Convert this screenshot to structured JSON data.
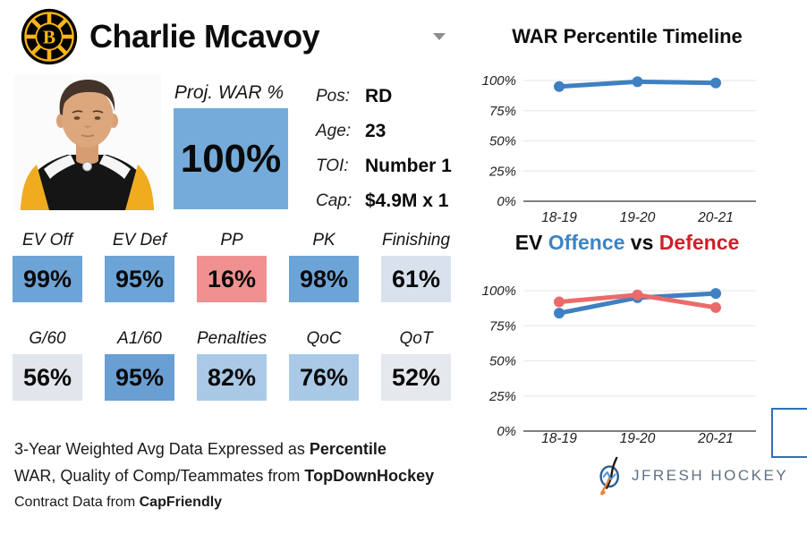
{
  "header": {
    "team_logo": "boston-bruins-logo",
    "player_name": "Charlie Mcavoy",
    "dropdown_icon": "caret-down"
  },
  "summary": {
    "proj_war_label": "Proj. WAR %",
    "proj_war_value": "100%",
    "proj_war_color": "#74abda",
    "info": [
      {
        "label": "Pos:",
        "value": "RD"
      },
      {
        "label": "Age:",
        "value": "23"
      },
      {
        "label": "TOI:",
        "value": "Number 1"
      },
      {
        "label": "Cap:",
        "value": "$4.9M x 1"
      }
    ]
  },
  "stats": {
    "row1": [
      {
        "label": "EV Off",
        "value": "99%",
        "color": "#6da4d7"
      },
      {
        "label": "EV Def",
        "value": "95%",
        "color": "#6da4d7"
      },
      {
        "label": "PP",
        "value": "16%",
        "color": "#f09191"
      },
      {
        "label": "PK",
        "value": "98%",
        "color": "#6da4d7"
      },
      {
        "label": "Finishing",
        "value": "61%",
        "color": "#d8e1ec"
      }
    ],
    "row2": [
      {
        "label": "G/60",
        "value": "56%",
        "color": "#e1e6ec"
      },
      {
        "label": "A1/60",
        "value": "95%",
        "color": "#699fd3"
      },
      {
        "label": "Penalties",
        "value": "82%",
        "color": "#a9c9e6"
      },
      {
        "label": "QoC",
        "value": "76%",
        "color": "#a9c9e6"
      },
      {
        "label": "QoT",
        "value": "52%",
        "color": "#e5e8ec"
      }
    ]
  },
  "footnotes": [
    {
      "text": "3-Year Weighted Avg Data Expressed as ",
      "bold": "Percentile"
    },
    {
      "text": "WAR, Quality of Comp/Teammates from ",
      "bold": "TopDownHockey"
    },
    {
      "text": "Contract Data from ",
      "bold": "CapFriendly"
    }
  ],
  "chart_data": [
    {
      "type": "line",
      "title": "WAR Percentile Timeline",
      "categories": [
        "18-19",
        "19-20",
        "20-21"
      ],
      "series": [
        {
          "name": "WAR Percentile",
          "color": "#3f80c2",
          "values": [
            95,
            99,
            98
          ]
        }
      ],
      "ylim": [
        0,
        100
      ],
      "yticks": [
        0,
        25,
        50,
        75,
        100
      ],
      "ytick_suffix": "%",
      "grid": true,
      "legend": "none"
    },
    {
      "type": "line",
      "title": "EV Offence vs Defence",
      "title_segments": [
        {
          "text": "EV ",
          "color": "#0d0d0d"
        },
        {
          "text": "Offence",
          "color": "#3c84c6"
        },
        {
          "text": " vs ",
          "color": "#0d0d0d"
        },
        {
          "text": "Defence",
          "color": "#cf2028"
        }
      ],
      "categories": [
        "18-19",
        "19-20",
        "20-21"
      ],
      "series": [
        {
          "name": "Offence",
          "color": "#3f80c2",
          "values": [
            84,
            95,
            98
          ]
        },
        {
          "name": "Defence",
          "color": "#ed6a6a",
          "values": [
            92,
            97,
            88
          ]
        }
      ],
      "ylim": [
        0,
        100
      ],
      "yticks": [
        0,
        25,
        50,
        75,
        100
      ],
      "ytick_suffix": "%",
      "grid": true,
      "legend": "none"
    }
  ],
  "branding": {
    "logo_text": "JFRESH HOCKEY"
  },
  "colors": {
    "strong_blue": "#6da4d7",
    "mid_blue": "#a9c9e6",
    "light_blue": "#d8e1ec",
    "light_gray": "#e5e8ec",
    "red": "#f09191",
    "line_blue": "#3f80c2",
    "line_red": "#ed6a6a",
    "title_red": "#cf2028",
    "title_blue": "#3c84c6",
    "selection_border": "#2f6fba",
    "gold": "#fcb514"
  }
}
